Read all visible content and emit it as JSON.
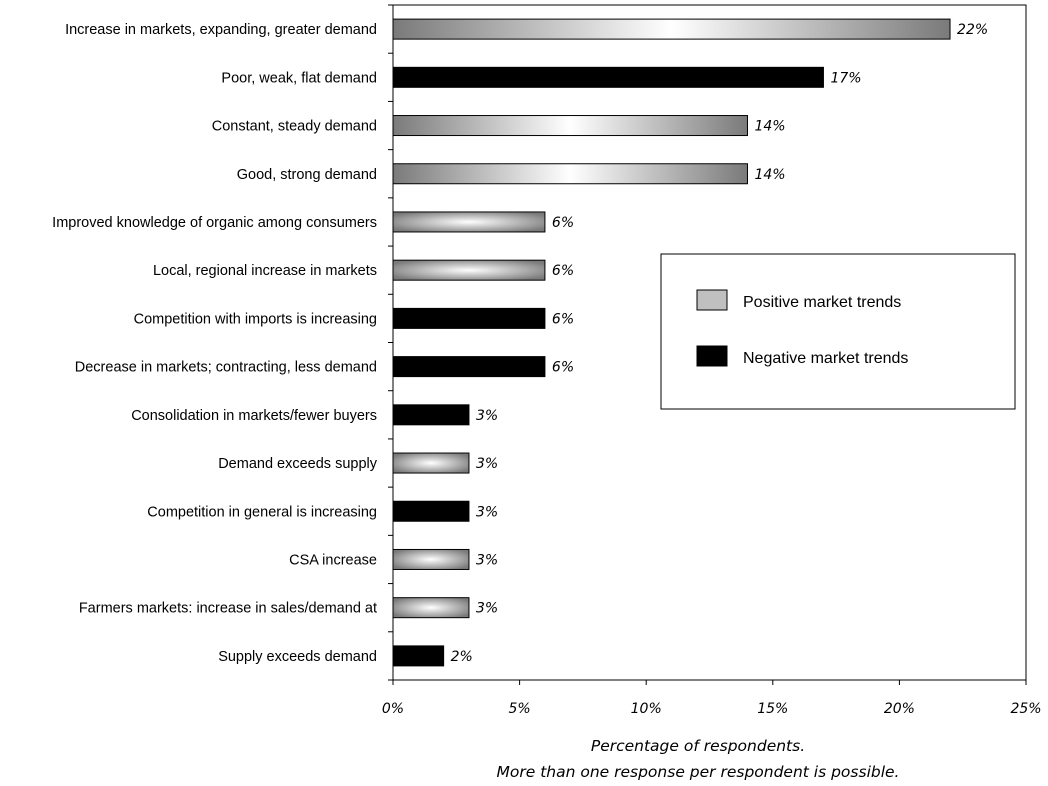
{
  "chart_data": {
    "type": "bar",
    "orientation": "horizontal",
    "categories": [
      "Increase in markets, expanding, greater demand",
      "Poor, weak, flat demand",
      "Constant, steady demand",
      "Good, strong demand",
      "Improved knowledge of organic among consumers",
      "Local, regional increase in markets",
      "Competition with imports is increasing",
      "Decrease in markets; contracting, less demand",
      "Consolidation in markets/fewer buyers",
      "Demand exceeds supply",
      "Competition in general is increasing",
      "CSA increase",
      "Farmers markets: increase in sales/demand at",
      "Supply exceeds demand"
    ],
    "values": [
      22,
      17,
      14,
      14,
      6,
      6,
      6,
      6,
      3,
      3,
      3,
      3,
      3,
      2
    ],
    "value_labels": [
      "22%",
      "17%",
      "14%",
      "14%",
      "6%",
      "6%",
      "6%",
      "6%",
      "3%",
      "3%",
      "3%",
      "3%",
      "3%",
      "2%"
    ],
    "groups": [
      "positive",
      "negative",
      "positive",
      "positive",
      "positive",
      "positive",
      "negative",
      "negative",
      "negative",
      "positive",
      "negative",
      "positive",
      "positive",
      "negative"
    ],
    "legend": {
      "placement": "right",
      "entries": [
        {
          "key": "positive",
          "label": "Positive market trends",
          "color": "#c0c0c0"
        },
        {
          "key": "negative",
          "label": "Negative market trends",
          "color": "#000000"
        }
      ]
    },
    "xlim": [
      0,
      25
    ],
    "xticks": [
      0,
      5,
      10,
      15,
      20,
      25
    ],
    "xtick_labels": [
      "0%",
      "5%",
      "10%",
      "15%",
      "20%",
      "25%"
    ],
    "xlabel": [
      "Percentage of respondents.",
      "More than one response per respondent is possible."
    ],
    "ylabel": "",
    "title": "",
    "grid": false,
    "colors": {
      "positive_dark": "#7a7a7a",
      "positive_light": "#ffffff",
      "negative": "#000000"
    }
  }
}
